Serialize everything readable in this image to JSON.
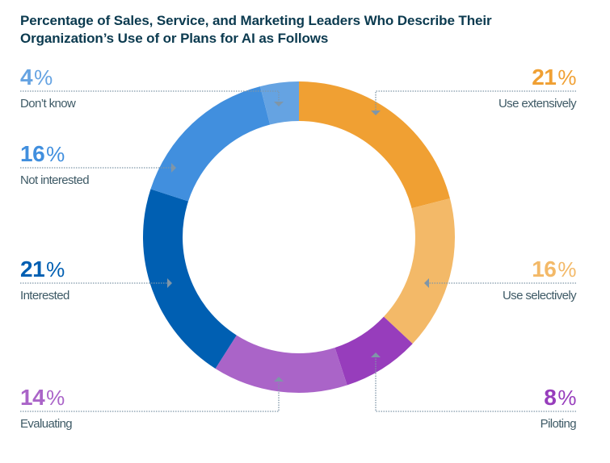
{
  "chart_data": {
    "type": "pie",
    "variant": "donut",
    "title": "Percentage of Sales, Service, and Marketing Leaders Who Describe Their Organization’s Use of or Plans for AI as Follows",
    "unit": "%",
    "start": "top",
    "direction": "clockwise",
    "slices": [
      {
        "label": "Use extensively",
        "value": 21,
        "color": "#f0a033",
        "side": "right",
        "row": "top"
      },
      {
        "label": "Use selectively",
        "value": 16,
        "color": "#f3b968",
        "side": "right",
        "row": "middle"
      },
      {
        "label": "Piloting",
        "value": 8,
        "color": "#973dbc",
        "side": "right",
        "row": "bottom"
      },
      {
        "label": "Evaluating",
        "value": 14,
        "color": "#aa64c8",
        "side": "left",
        "row": "bottom"
      },
      {
        "label": "Interested",
        "value": 21,
        "color": "#005fb2",
        "side": "left",
        "row": "middle"
      },
      {
        "label": "Not interested",
        "value": 16,
        "color": "#418fde",
        "side": "left",
        "row": "upper"
      },
      {
        "label": "Don’t know",
        "value": 4,
        "color": "#65a3e2",
        "side": "left",
        "row": "top"
      }
    ]
  },
  "style": {
    "title_color": "#0b3a4f",
    "label_color": "#3e5a66",
    "connector_color": "#7f96a8"
  }
}
